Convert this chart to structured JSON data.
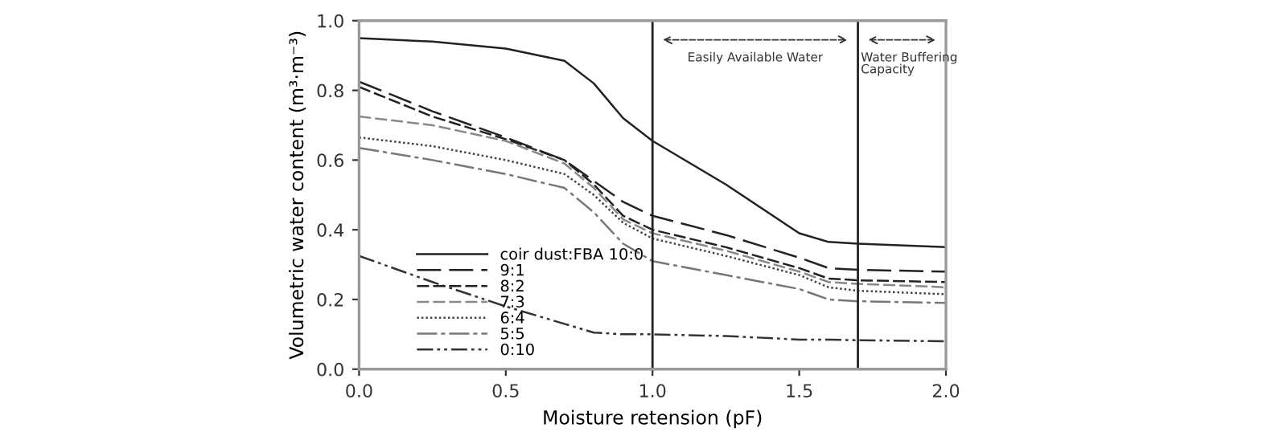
{
  "chart_data": {
    "type": "line",
    "xlabel": "Moisture retension (pF)",
    "ylabel": "Volumetric water content (m³·m⁻³)",
    "x": [
      0,
      0.25,
      0.5,
      0.7,
      0.8,
      0.9,
      1.0,
      1.25,
      1.5,
      1.6,
      1.7,
      2.0
    ],
    "series": [
      {
        "name": "coir dust:FBA 10:0",
        "color": "#222222",
        "line_style": "solid",
        "values": [
          0.95,
          0.94,
          0.92,
          0.885,
          0.82,
          0.72,
          0.655,
          0.53,
          0.39,
          0.365,
          0.36,
          0.35
        ]
      },
      {
        "name": "9:1",
        "color": "#222222",
        "line_style": "longdash",
        "values": [
          0.825,
          0.74,
          0.665,
          0.6,
          0.54,
          0.48,
          0.44,
          0.385,
          0.32,
          0.29,
          0.285,
          0.28
        ]
      },
      {
        "name": "8:2",
        "color": "#222222",
        "line_style": "dashed",
        "values": [
          0.81,
          0.725,
          0.66,
          0.6,
          0.53,
          0.44,
          0.4,
          0.35,
          0.29,
          0.26,
          0.255,
          0.25
        ]
      },
      {
        "name": "7:3",
        "color": "#888888",
        "line_style": "dashed",
        "values": [
          0.725,
          0.7,
          0.655,
          0.59,
          0.52,
          0.43,
          0.39,
          0.34,
          0.28,
          0.25,
          0.245,
          0.235
        ]
      },
      {
        "name": "6:4",
        "color": "#444444",
        "line_style": "dotted",
        "values": [
          0.665,
          0.64,
          0.6,
          0.56,
          0.5,
          0.42,
          0.375,
          0.325,
          0.27,
          0.235,
          0.225,
          0.215
        ]
      },
      {
        "name": "5:5",
        "color": "#777777",
        "line_style": "dashdot",
        "values": [
          0.635,
          0.6,
          0.56,
          0.52,
          0.45,
          0.36,
          0.31,
          0.27,
          0.23,
          0.2,
          0.195,
          0.19
        ]
      },
      {
        "name": "0:10",
        "color": "#333333",
        "line_style": "dashdotdot",
        "values": [
          0.325,
          0.25,
          0.18,
          0.13,
          0.105,
          0.1,
          0.1,
          0.095,
          0.085,
          0.085,
          0.083,
          0.08
        ]
      }
    ],
    "xlim": [
      0,
      2.0
    ],
    "ylim": [
      0,
      1.0
    ],
    "xticks": [
      {
        "value": 0,
        "label": "0.0"
      },
      0.5,
      {
        "value": 1,
        "label": "1.0"
      },
      1.5,
      {
        "value": 2,
        "label": "2.0"
      }
    ],
    "yticks": [
      {
        "value": 0,
        "label": "0.0"
      },
      0.2,
      0.4,
      0.6,
      0.8,
      {
        "value": 1,
        "label": "1.0"
      }
    ],
    "ref_lines": [
      {
        "axis": "x",
        "value": 1.0,
        "label": null,
        "color": "#222222"
      },
      {
        "axis": "x",
        "value": 1.7,
        "label": null,
        "color": "#222222"
      }
    ],
    "annotations": [
      "Easily Available Water",
      "Water Buffering\nCapacity"
    ],
    "grid": false,
    "legend": "bottom left"
  }
}
